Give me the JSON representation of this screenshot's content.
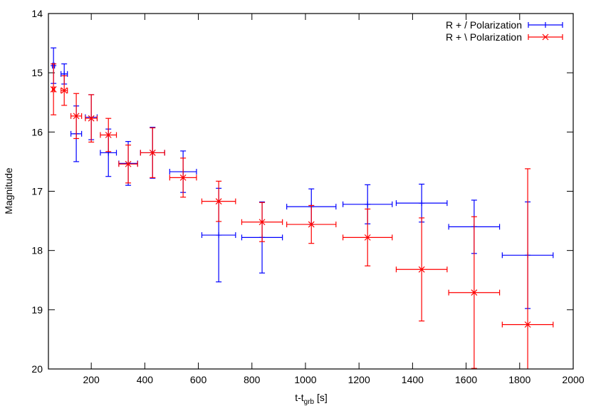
{
  "chart_data": {
    "type": "scatter",
    "title": "",
    "xlabel": "t-t",
    "xlabel_sub": "grb",
    "xlabel_unit": " [s]",
    "ylabel": "Magnitude",
    "xlim": [
      40,
      2000
    ],
    "ylim": [
      14,
      20
    ],
    "y_inverted": true,
    "grid": false,
    "legend_position": "top-right",
    "x_ticks": [
      200,
      400,
      600,
      800,
      1000,
      1200,
      1400,
      1600,
      1800,
      2000
    ],
    "y_ticks": [
      14,
      15,
      16,
      17,
      18,
      19,
      20
    ],
    "series": [
      {
        "name": "R + / Polarization",
        "color": "#0000ff",
        "marker": "plus",
        "points": [
          {
            "x": 59,
            "y": 14.88,
            "xerr": 4,
            "yerr": 0.3
          },
          {
            "x": 99,
            "y": 15.02,
            "xerr": 12,
            "yerr": 0.17
          },
          {
            "x": 144,
            "y": 16.03,
            "xerr": 20,
            "yerr": 0.47
          },
          {
            "x": 200,
            "y": 15.75,
            "xerr": 22,
            "yerr": 0.38
          },
          {
            "x": 264,
            "y": 16.35,
            "xerr": 30,
            "yerr": 0.4
          },
          {
            "x": 338,
            "y": 16.53,
            "xerr": 35,
            "yerr": 0.37
          },
          {
            "x": 429,
            "y": 16.35,
            "xerr": 45,
            "yerr": 0.43
          },
          {
            "x": 543,
            "y": 16.67,
            "xerr": 50,
            "yerr": 0.35
          },
          {
            "x": 676,
            "y": 17.74,
            "xerr": 63,
            "yerr": 0.79
          },
          {
            "x": 838,
            "y": 17.78,
            "xerr": 76,
            "yerr": 0.6
          },
          {
            "x": 1022,
            "y": 17.26,
            "xerr": 92,
            "yerr": 0.3
          },
          {
            "x": 1232,
            "y": 17.22,
            "xerr": 92,
            "yerr": 0.33
          },
          {
            "x": 1434,
            "y": 17.2,
            "xerr": 95,
            "yerr": 0.32
          },
          {
            "x": 1630,
            "y": 17.6,
            "xerr": 95,
            "yerr": 0.45
          },
          {
            "x": 1830,
            "y": 18.08,
            "xerr": 95,
            "yerr": 0.9
          }
        ]
      },
      {
        "name": "R + \\ Polarization",
        "color": "#ff0000",
        "marker": "cross",
        "points": [
          {
            "x": 59,
            "y": 15.28,
            "xerr": 4,
            "yerr": 0.43
          },
          {
            "x": 99,
            "y": 15.3,
            "xerr": 12,
            "yerr": 0.25
          },
          {
            "x": 144,
            "y": 15.73,
            "xerr": 20,
            "yerr": 0.38
          },
          {
            "x": 200,
            "y": 15.77,
            "xerr": 22,
            "yerr": 0.4
          },
          {
            "x": 264,
            "y": 16.05,
            "xerr": 30,
            "yerr": 0.28
          },
          {
            "x": 338,
            "y": 16.54,
            "xerr": 35,
            "yerr": 0.32
          },
          {
            "x": 429,
            "y": 16.35,
            "xerr": 45,
            "yerr": 0.42
          },
          {
            "x": 543,
            "y": 16.77,
            "xerr": 50,
            "yerr": 0.33
          },
          {
            "x": 676,
            "y": 17.17,
            "xerr": 63,
            "yerr": 0.34
          },
          {
            "x": 838,
            "y": 17.52,
            "xerr": 76,
            "yerr": 0.33
          },
          {
            "x": 1022,
            "y": 17.56,
            "xerr": 92,
            "yerr": 0.32
          },
          {
            "x": 1232,
            "y": 17.78,
            "xerr": 92,
            "yerr": 0.48
          },
          {
            "x": 1434,
            "y": 18.32,
            "xerr": 95,
            "yerr": 0.87
          },
          {
            "x": 1630,
            "y": 18.71,
            "xerr": 95,
            "yerr": 1.28
          },
          {
            "x": 1830,
            "y": 19.25,
            "xerr": 95,
            "yerr": 2.63
          }
        ]
      }
    ]
  }
}
